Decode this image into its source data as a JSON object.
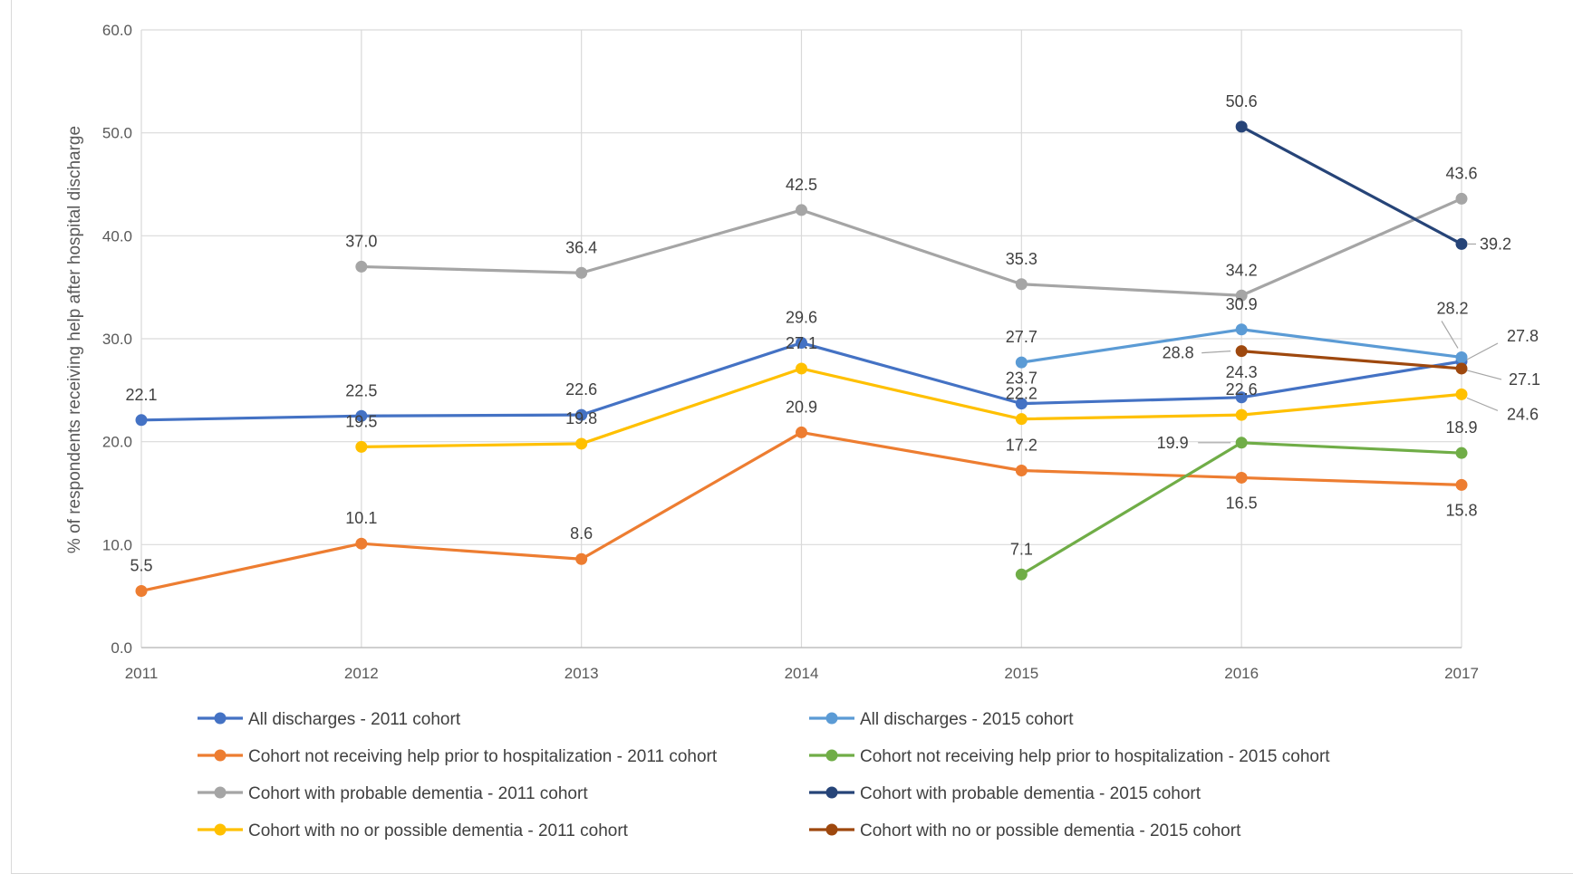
{
  "chart_data": {
    "type": "line",
    "title": "",
    "xlabel": "",
    "ylabel": "% of respondents receiving help after hospital discharge",
    "ylim": [
      0,
      60
    ],
    "yticks": [
      "0.0",
      "10.0",
      "20.0",
      "30.0",
      "40.0",
      "50.0",
      "60.0"
    ],
    "categories": [
      "2011",
      "2012",
      "2013",
      "2014",
      "2015",
      "2016",
      "2017"
    ],
    "grid": true,
    "legend_position": "bottom",
    "series": [
      {
        "name": "All discharges - 2011 cohort",
        "color": "#4472C4",
        "values": [
          22.1,
          22.5,
          22.6,
          29.6,
          23.7,
          24.3,
          27.8
        ],
        "labels": [
          "22.1",
          "22.5",
          "22.6",
          "29.6",
          "23.7",
          "24.3",
          "27.8"
        ]
      },
      {
        "name": "All discharges - 2015 cohort",
        "color": "#5B9BD5",
        "values": [
          null,
          null,
          null,
          null,
          27.7,
          30.9,
          28.2
        ],
        "labels": [
          null,
          null,
          null,
          null,
          "27.7",
          "30.9",
          "28.2"
        ]
      },
      {
        "name": "Cohort not receiving help prior to hospitalization - 2011 cohort",
        "color": "#ED7D31",
        "values": [
          5.5,
          10.1,
          8.6,
          20.9,
          17.2,
          16.5,
          15.8
        ],
        "labels": [
          "5.5",
          "10.1",
          "8.6",
          "20.9",
          "17.2",
          "16.5",
          "15.8"
        ]
      },
      {
        "name": "Cohort not receiving help prior to hospitalization - 2015 cohort",
        "color": "#70AD47",
        "values": [
          null,
          null,
          null,
          null,
          7.1,
          19.9,
          18.9
        ],
        "labels": [
          null,
          null,
          null,
          null,
          "7.1",
          "19.9",
          "18.9"
        ]
      },
      {
        "name": "Cohort with probable dementia - 2011 cohort",
        "color": "#A5A5A5",
        "values": [
          null,
          37.0,
          36.4,
          42.5,
          35.3,
          34.2,
          43.6
        ],
        "labels": [
          null,
          "37.0",
          "36.4",
          "42.5",
          "35.3",
          "34.2",
          "43.6"
        ]
      },
      {
        "name": "Cohort with probable dementia - 2015 cohort",
        "color": "#264478",
        "values": [
          null,
          null,
          null,
          null,
          null,
          50.6,
          39.2
        ],
        "labels": [
          null,
          null,
          null,
          null,
          null,
          "50.6",
          "39.2"
        ]
      },
      {
        "name": "Cohort with no or possible dementia - 2011 cohort",
        "color": "#FFC000",
        "values": [
          null,
          19.5,
          19.8,
          27.1,
          22.2,
          22.6,
          24.6
        ],
        "labels": [
          null,
          "19.5",
          "19.8",
          "27.1",
          "22.2",
          "22.6",
          "24.6"
        ]
      },
      {
        "name": "Cohort with no or possible dementia - 2015 cohort",
        "color": "#9E480E",
        "values": [
          null,
          null,
          null,
          null,
          null,
          28.8,
          27.1
        ],
        "labels": [
          null,
          null,
          null,
          null,
          null,
          "28.8",
          "27.1"
        ]
      }
    ]
  }
}
